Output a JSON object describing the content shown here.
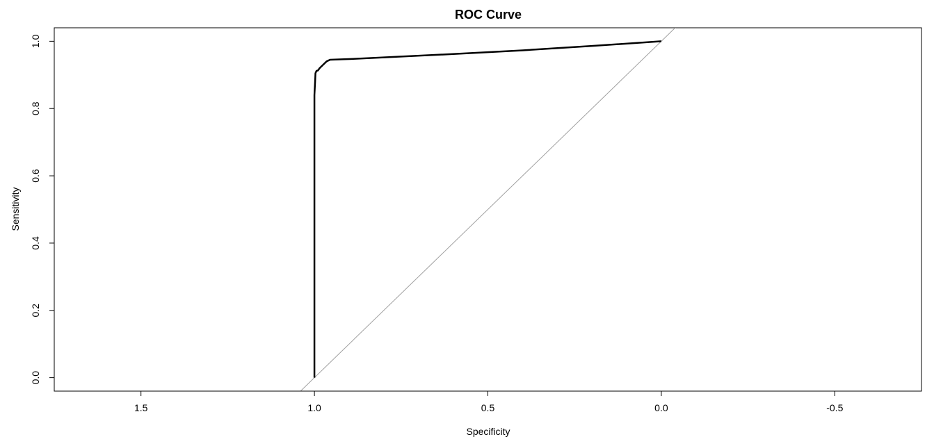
{
  "chart_data": {
    "type": "line",
    "title": "ROC Curve",
    "xlabel": "Specificity",
    "ylabel": "Sensitivity",
    "xlim": [
      1.75,
      -0.75
    ],
    "ylim": [
      -0.04,
      1.04
    ],
    "x_reversed": true,
    "grid": false,
    "legend": "none",
    "x_ticks": [
      {
        "value": 1.5,
        "label": "1.5"
      },
      {
        "value": 1.0,
        "label": "1.0"
      },
      {
        "value": 0.5,
        "label": "0.5"
      },
      {
        "value": 0.0,
        "label": "0.0"
      },
      {
        "value": -0.5,
        "label": "-0.5"
      }
    ],
    "y_ticks": [
      {
        "value": 0.0,
        "label": "0.0"
      },
      {
        "value": 0.2,
        "label": "0.2"
      },
      {
        "value": 0.4,
        "label": "0.4"
      },
      {
        "value": 0.6,
        "label": "0.6"
      },
      {
        "value": 0.8,
        "label": "0.8"
      },
      {
        "value": 1.0,
        "label": "1.0"
      }
    ],
    "series": [
      {
        "color": "#000000",
        "specificity": [
          1.0,
          1.0,
          1.0,
          0.998,
          0.997,
          0.994,
          0.99,
          0.985,
          0.975,
          0.965,
          0.955,
          0.9,
          0.8,
          0.6,
          0.4,
          0.2,
          0.0
        ],
        "sensitivity": [
          0.0,
          0.5,
          0.84,
          0.88,
          0.905,
          0.912,
          0.913,
          0.92,
          0.93,
          0.94,
          0.945,
          0.947,
          0.952,
          0.962,
          0.973,
          0.986,
          1.0
        ]
      }
    ],
    "reference_line": {
      "color": "#a0a0a0",
      "specificity": [
        1.0,
        0.0
      ],
      "sensitivity": [
        0.0,
        1.0
      ]
    }
  }
}
